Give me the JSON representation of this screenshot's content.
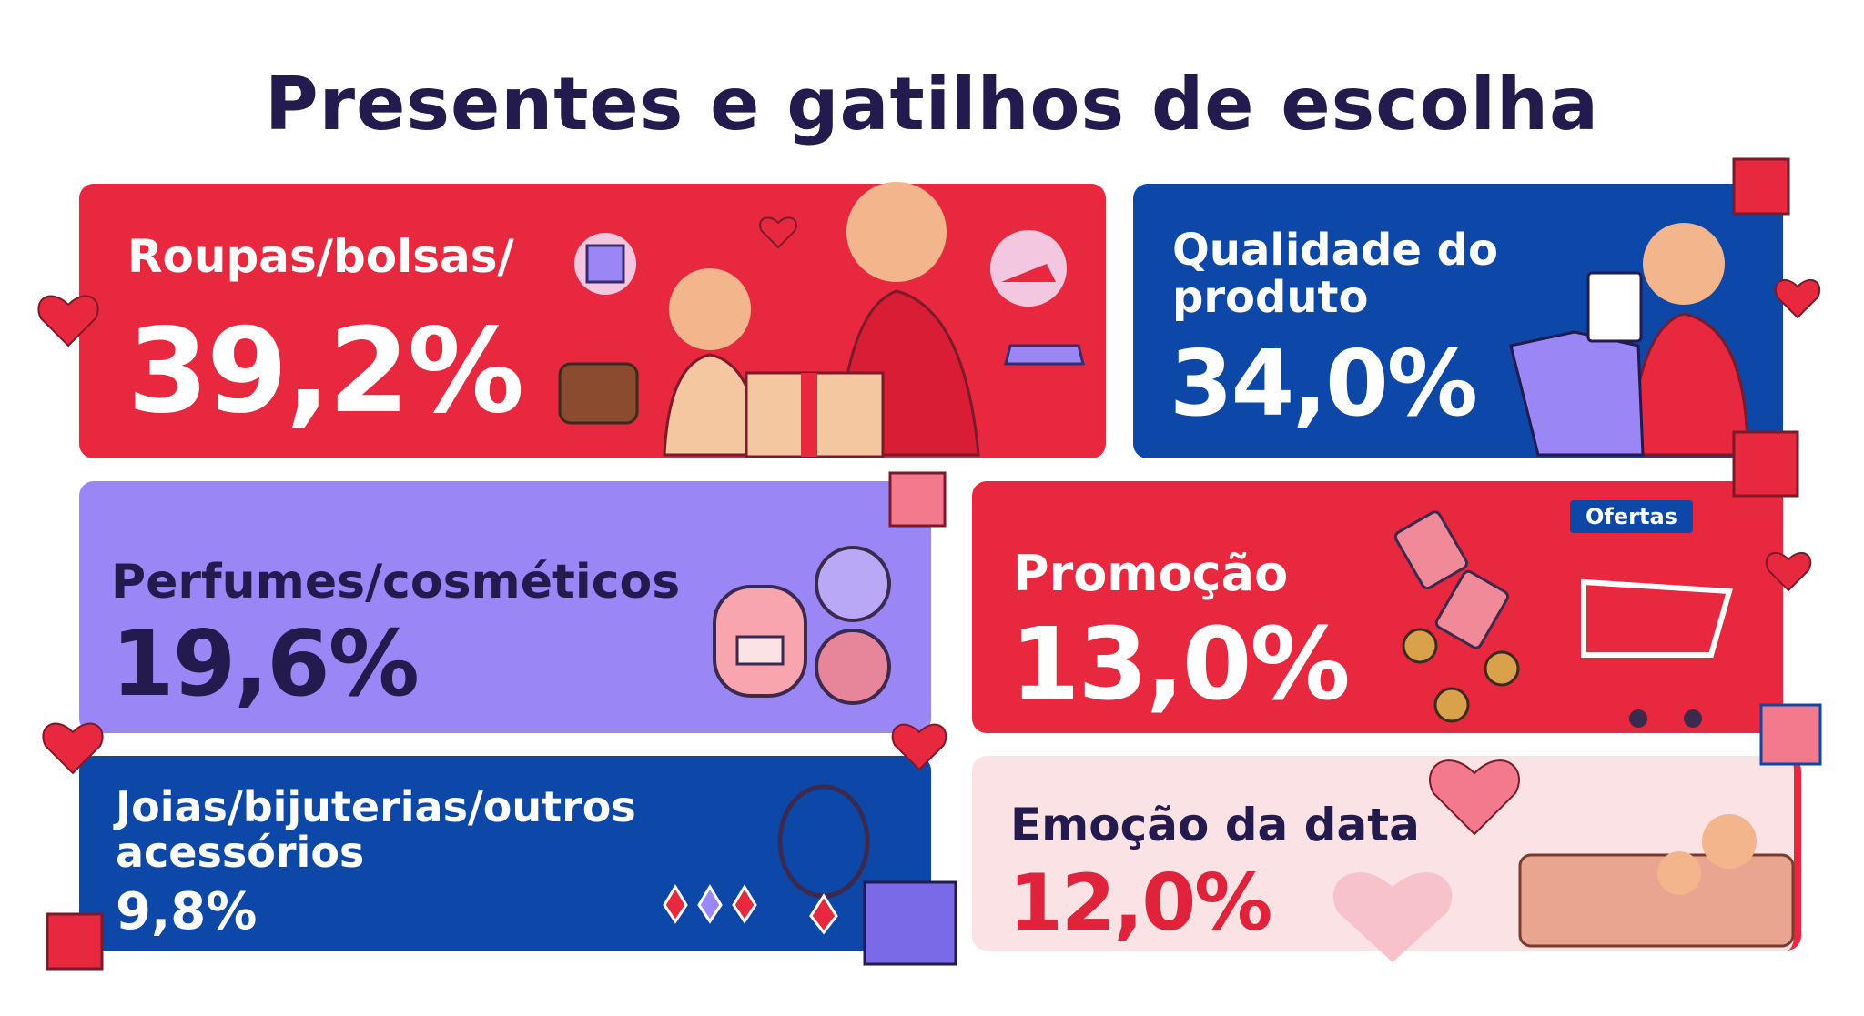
{
  "header": {
    "title": "Presentes e gatilhos de escolha"
  },
  "cards": [
    {
      "label": "Roupas/bolsas/",
      "value": "39,2%"
    },
    {
      "label": "Qualidade do produto",
      "value": "34,0%"
    },
    {
      "label": "Perfumes/cosméticos",
      "value": "19,6%"
    },
    {
      "label": "Promoção",
      "value": "13,0%"
    },
    {
      "label": "Joias/bijuterias/outros acessórios",
      "value": "9,8%"
    },
    {
      "label": "Emoção da data",
      "value": "12,0%"
    }
  ],
  "tag": "Ofertas"
}
